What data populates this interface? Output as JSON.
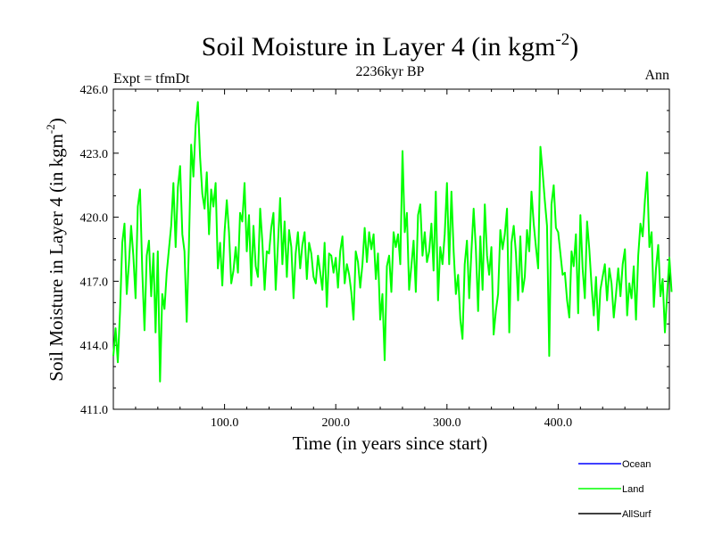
{
  "chart_data": {
    "type": "line",
    "title_main": "Soil Moisture in Layer 4 (in kgm",
    "title_sup": "-2",
    "title_close": ")",
    "subtitle": "2236kyr BP",
    "left_label": "Expt = tfmDt",
    "right_label": "Ann",
    "xlabel": "Time (in years since start)",
    "ylabel_main": "Soil Moisture in Layer 4 (in kgm",
    "ylabel_sup": "-2",
    "ylabel_close": ")",
    "xlim": [
      0,
      500
    ],
    "ylim": [
      411,
      426
    ],
    "x_ticks": [
      100,
      200,
      300,
      400
    ],
    "x_tick_labels": [
      "100.0",
      "200.0",
      "300.0",
      "400.0"
    ],
    "y_ticks": [
      411,
      414,
      417,
      420,
      423,
      426
    ],
    "y_tick_labels": [
      "411.0",
      "414.0",
      "417.0",
      "420.0",
      "423.0",
      "426.0"
    ],
    "legend": [
      {
        "name": "Ocean",
        "color": "#0000ff"
      },
      {
        "name": "Land",
        "color": "#00ff00"
      },
      {
        "name": "AllSurf",
        "color": "#000000"
      }
    ],
    "series": [
      {
        "name": "Land",
        "color": "#00ff00",
        "x_start": 0,
        "x_step": 2,
        "values": [
          413.5,
          414.8,
          413.2,
          415.6,
          418.8,
          419.7,
          416.4,
          417.8,
          419.6,
          418.2,
          416.2,
          420.5,
          421.3,
          417.5,
          414.7,
          418.2,
          418.9,
          416.3,
          418.3,
          414.6,
          418.4,
          412.3,
          416.4,
          415.7,
          417.4,
          418.5,
          419.6,
          421.6,
          418.6,
          421.4,
          422.4,
          419.2,
          418.4,
          415.1,
          418.7,
          423.4,
          421.9,
          424.3,
          425.4,
          422.8,
          421.1,
          420.4,
          422.1,
          419.2,
          421.3,
          420.5,
          421.6,
          417.6,
          418.8,
          416.8,
          419.3,
          420.8,
          419.3,
          416.9,
          417.5,
          418.6,
          417.4,
          420.2,
          419.8,
          421.6,
          418.4,
          420.1,
          416.8,
          419.6,
          417.7,
          417.2,
          420.4,
          418.8,
          416.6,
          418.4,
          418.3,
          419.5,
          420.2,
          416.6,
          418.7,
          420.9,
          417.8,
          419.8,
          417.2,
          419.4,
          418.6,
          416.2,
          418.3,
          419.3,
          417.6,
          418.7,
          419.3,
          417.1,
          418.8,
          418.3,
          417.2,
          416.9,
          418.2,
          417.4,
          416.6,
          418.8,
          415.8,
          418.3,
          418.2,
          417.4,
          418.1,
          416.7,
          418.4,
          419.1,
          416.9,
          417.8,
          417.3,
          416.5,
          415.2,
          418.4,
          417.9,
          416.7,
          417.8,
          419.5,
          417.9,
          419.3,
          418.5,
          419.2,
          417.1,
          418.3,
          415.2,
          416.4,
          413.3,
          417.7,
          418.2,
          416.5,
          419.3,
          418.6,
          419.2,
          417.8,
          423.1,
          419.3,
          420.2,
          416.6,
          417.7,
          418.9,
          416.5,
          420.1,
          420.6,
          418.2,
          419.3,
          417.9,
          418.4,
          419.7,
          417.5,
          421.2,
          416.1,
          418.6,
          417.8,
          419.2,
          421.6,
          417.8,
          421.2,
          418.4,
          416.4,
          417.3,
          415.2,
          414.3,
          417.8,
          418.9,
          416.2,
          418.4,
          420.4,
          418.5,
          415.6,
          419.1,
          416.6,
          420.6,
          418.2,
          417.3,
          418.6,
          414.5,
          415.6,
          416.4,
          419.4,
          418.5,
          419.2,
          420.4,
          414.6,
          418.8,
          419.6,
          418.3,
          416.1,
          419.1,
          416.5,
          417.2,
          419.4,
          418.4,
          421.2,
          419.7,
          418.6,
          417.6,
          423.3,
          422.1,
          420.8,
          419.6,
          413.5,
          420.6,
          421.5,
          419.5,
          419.3,
          418.3,
          417.3,
          417.4,
          416.1,
          415.3,
          418.4,
          417.7,
          419.2,
          415.5,
          420.1,
          417.6,
          416.2,
          419.8,
          418.5,
          416.8,
          415.4,
          417.2,
          414.7,
          416.6,
          417.2,
          417.8,
          416.1,
          417.6,
          416.9,
          415.3,
          416.4,
          417.6,
          416.3,
          417.8,
          418.5,
          415.4,
          416.9,
          416.2,
          417.7,
          415.2,
          418.2,
          419.7,
          419.1,
          420.8,
          422.1,
          418.6,
          419.3,
          415.8,
          417.6,
          418.7,
          416.3,
          417.1,
          414.6,
          416.4,
          418.1,
          416.5
        ]
      }
    ]
  }
}
